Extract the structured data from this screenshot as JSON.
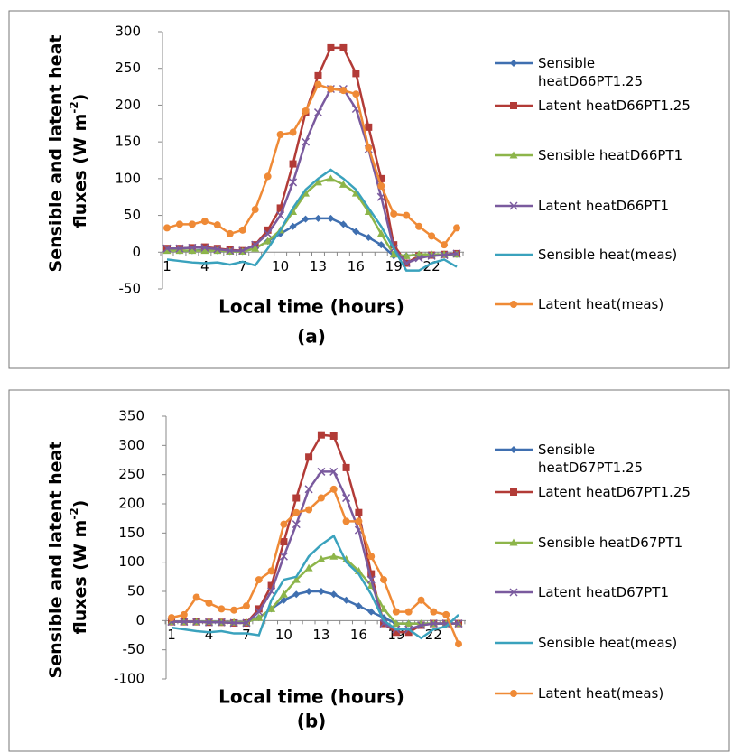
{
  "chart_data": [
    {
      "type": "line",
      "label": "(a)",
      "xlabel": "Local time (hours)",
      "ylabel": {
        "line1": "Sensible and latent heat",
        "line2": "fluxes (W m",
        "sup": "-2",
        "end": ")"
      },
      "categories": [
        1,
        null,
        null,
        4,
        null,
        null,
        7,
        null,
        null,
        10,
        null,
        null,
        13,
        null,
        null,
        16,
        null,
        null,
        19,
        null,
        null,
        22,
        null,
        null
      ],
      "ylim": [
        -50,
        300
      ],
      "yticks": [
        -50,
        0,
        50,
        100,
        150,
        200,
        250,
        300
      ],
      "grid": false,
      "series": [
        {
          "name": "Sensible heatD66PT1.25",
          "color": "#3f6fb0",
          "marker": "diamond",
          "values": [
            3,
            2,
            2,
            3,
            2,
            1,
            1,
            5,
            15,
            25,
            35,
            45,
            46,
            46,
            38,
            28,
            20,
            10,
            -5,
            -5,
            -3,
            -3,
            -3,
            -3
          ]
        },
        {
          "name": "Latent heatD66PT1.25",
          "color": "#b23b37",
          "marker": "square",
          "values": [
            5,
            5,
            6,
            7,
            5,
            3,
            2,
            10,
            30,
            60,
            120,
            190,
            240,
            278,
            278,
            243,
            170,
            100,
            10,
            -15,
            -5,
            -4,
            -3,
            -2
          ]
        },
        {
          "name": "Sensible heatD66PT1",
          "color": "#8db54a",
          "marker": "triangle",
          "values": [
            2,
            2,
            2,
            2,
            2,
            1,
            1,
            5,
            15,
            30,
            55,
            80,
            95,
            100,
            92,
            80,
            55,
            25,
            -3,
            -5,
            -3,
            -3,
            -3,
            -3
          ]
        },
        {
          "name": "Latent heatD66PT1",
          "color": "#7a5a9e",
          "marker": "x",
          "values": [
            5,
            5,
            6,
            6,
            4,
            2,
            2,
            10,
            25,
            50,
            95,
            150,
            190,
            222,
            222,
            195,
            140,
            75,
            5,
            -15,
            -8,
            -5,
            -4,
            -2
          ]
        },
        {
          "name": "Sensible heat(meas)",
          "color": "#3aa2bd",
          "marker": "none",
          "values": [
            -10,
            -12,
            -14,
            -15,
            -14,
            -17,
            -13,
            -18,
            5,
            30,
            60,
            85,
            100,
            112,
            100,
            85,
            60,
            35,
            5,
            -25,
            -25,
            -15,
            -10,
            -20
          ]
        },
        {
          "name": "Latent heat(meas)",
          "color": "#ef8a36",
          "marker": "circle",
          "values": [
            33,
            38,
            38,
            42,
            37,
            25,
            30,
            58,
            103,
            160,
            163,
            192,
            228,
            222,
            220,
            215,
            142,
            90,
            52,
            50,
            35,
            22,
            10,
            33
          ]
        }
      ]
    },
    {
      "type": "line",
      "label": "(b)",
      "xlabel": "Local time (hours)",
      "ylabel": {
        "line1": "Sensible and latent heat",
        "line2": "fluxes (W m",
        "sup": "-2",
        "end": ")"
      },
      "categories": [
        1,
        null,
        null,
        4,
        null,
        null,
        7,
        null,
        null,
        10,
        null,
        null,
        13,
        null,
        null,
        16,
        null,
        null,
        19,
        null,
        null,
        22,
        null,
        null
      ],
      "ylim": [
        -100,
        350
      ],
      "yticks": [
        -100,
        -50,
        0,
        50,
        100,
        150,
        200,
        250,
        300,
        350
      ],
      "grid": false,
      "series": [
        {
          "name": "Sensible heatD67PT1.25",
          "color": "#3f6fb0",
          "marker": "diamond",
          "values": [
            -2,
            -2,
            -2,
            -2,
            -3,
            -3,
            -3,
            5,
            20,
            35,
            45,
            50,
            50,
            45,
            35,
            25,
            15,
            5,
            -5,
            -5,
            -5,
            -5,
            -5,
            -5
          ]
        },
        {
          "name": "Latent heatD67PT1.25",
          "color": "#b23b37",
          "marker": "square",
          "values": [
            -2,
            -2,
            -2,
            -3,
            -3,
            -4,
            -4,
            20,
            60,
            135,
            210,
            280,
            318,
            316,
            262,
            185,
            80,
            -5,
            -20,
            -20,
            -8,
            -5,
            -5,
            -5
          ]
        },
        {
          "name": "Sensible heatD67PT1",
          "color": "#8db54a",
          "marker": "triangle",
          "values": [
            -2,
            -2,
            -2,
            -2,
            -3,
            -3,
            -3,
            5,
            20,
            45,
            70,
            90,
            105,
            110,
            105,
            85,
            60,
            20,
            -5,
            -5,
            -5,
            -5,
            -5,
            -5
          ]
        },
        {
          "name": "Latent heatD67PT1",
          "color": "#7a5a9e",
          "marker": "x",
          "values": [
            -2,
            -2,
            -2,
            -3,
            -3,
            -4,
            -4,
            15,
            50,
            110,
            165,
            225,
            255,
            255,
            210,
            155,
            70,
            -5,
            -15,
            -15,
            -8,
            -5,
            -5,
            -5
          ]
        },
        {
          "name": "Sensible heat(meas)",
          "color": "#3aa2bd",
          "marker": "none",
          "values": [
            -12,
            -15,
            -18,
            -20,
            -18,
            -22,
            -22,
            -25,
            35,
            70,
            75,
            110,
            130,
            145,
            100,
            80,
            45,
            0,
            -15,
            -15,
            -30,
            -15,
            -10,
            10
          ]
        },
        {
          "name": "Latent heat(meas)",
          "color": "#ef8a36",
          "marker": "circle",
          "values": [
            5,
            10,
            40,
            30,
            20,
            18,
            25,
            70,
            85,
            165,
            185,
            190,
            210,
            225,
            170,
            170,
            110,
            70,
            15,
            15,
            35,
            15,
            10,
            -40
          ]
        }
      ]
    }
  ]
}
